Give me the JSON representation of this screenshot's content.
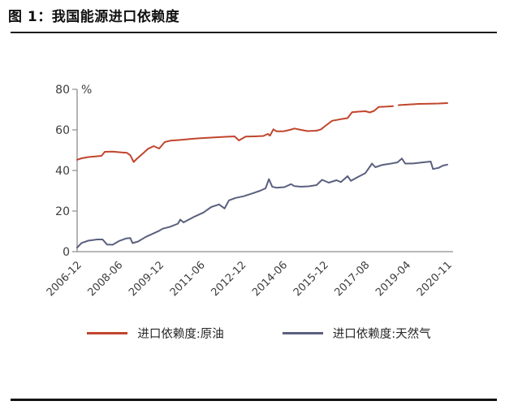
{
  "header": {
    "title": "图 1：我国能源进口依赖度"
  },
  "colors": {
    "oil_line": "#c1452c",
    "gas_line": "#5a607e",
    "axis": "#8c8c8c",
    "tick_label": "#3d3d3d",
    "title_text": "#101010",
    "rule": "#1c1c1c"
  },
  "chart_data": {
    "type": "line",
    "title": "我国能源进口依赖度",
    "unit_label": "%",
    "ylim": [
      0,
      80
    ],
    "yticks": [
      0,
      20,
      40,
      60,
      80
    ],
    "grid": "off",
    "legend_position": "bottom",
    "x_tick_labels": [
      "2006-12",
      "2008-06",
      "2009-12",
      "2011-06",
      "2012-12",
      "2014-06",
      "2015-12",
      "2017-08",
      "2019-04",
      "2020-11"
    ],
    "x_total_months": 167,
    "series": [
      {
        "name": "进口依赖度:原油",
        "color": "#c1452c",
        "segments": [
          [
            [
              0,
              45.3
            ],
            [
              2,
              46.0
            ],
            [
              5,
              46.6
            ],
            [
              9,
              47.0
            ],
            [
              11,
              47.2
            ],
            [
              12.5,
              49.2
            ],
            [
              16,
              49.3
            ],
            [
              20,
              48.9
            ],
            [
              22.5,
              48.7
            ],
            [
              24,
              47.5
            ],
            [
              25.5,
              44.2
            ],
            [
              27,
              45.8
            ],
            [
              30,
              48.7
            ],
            [
              32,
              50.7
            ],
            [
              34.5,
              52.0
            ],
            [
              37,
              50.8
            ],
            [
              39.5,
              54.0
            ],
            [
              42,
              54.7
            ],
            [
              46,
              55.0
            ],
            [
              49,
              55.3
            ],
            [
              53,
              55.7
            ],
            [
              57,
              56.0
            ],
            [
              62,
              56.3
            ],
            [
              67,
              56.6
            ],
            [
              71,
              56.8
            ],
            [
              73,
              54.8
            ],
            [
              76,
              56.7
            ],
            [
              80,
              56.8
            ],
            [
              84,
              57.0
            ],
            [
              86,
              58.0
            ],
            [
              87,
              57.2
            ],
            [
              88.5,
              60.3
            ],
            [
              90,
              59.3
            ],
            [
              93,
              59.3
            ],
            [
              96,
              60.0
            ],
            [
              98,
              60.7
            ],
            [
              101,
              60.0
            ],
            [
              104,
              59.4
            ],
            [
              108,
              59.6
            ],
            [
              110,
              60.3
            ],
            [
              112,
              62.0
            ],
            [
              115,
              64.5
            ],
            [
              119,
              65.3
            ],
            [
              122,
              65.8
            ],
            [
              124,
              68.7
            ],
            [
              127,
              69.0
            ],
            [
              130,
              69.2
            ],
            [
              132,
              68.6
            ],
            [
              134,
              69.4
            ],
            [
              136,
              71.3
            ],
            [
              140,
              71.5
            ],
            [
              142.5,
              71.7
            ]
          ],
          [
            [
              145,
              72.2
            ],
            [
              148,
              72.4
            ],
            [
              154,
              72.8
            ],
            [
              159,
              72.9
            ],
            [
              163,
              73.0
            ],
            [
              167,
              73.2
            ]
          ]
        ]
      },
      {
        "name": "进口依赖度:天然气",
        "color": "#5a607e",
        "segments": [
          [
            [
              0,
              2.0
            ],
            [
              2,
              4.3
            ],
            [
              5,
              5.4
            ],
            [
              9,
              6.0
            ],
            [
              11.5,
              6.0
            ],
            [
              13.5,
              3.5
            ],
            [
              16,
              3.4
            ],
            [
              19,
              5.3
            ],
            [
              22,
              6.5
            ],
            [
              24,
              6.7
            ],
            [
              25,
              4.2
            ],
            [
              27.5,
              5.0
            ],
            [
              31,
              7.3
            ],
            [
              35,
              9.3
            ],
            [
              37,
              10.3
            ],
            [
              38.5,
              11.3
            ],
            [
              42,
              12.3
            ],
            [
              45.5,
              13.8
            ],
            [
              46.5,
              15.8
            ],
            [
              48,
              14.4
            ],
            [
              49.5,
              15.3
            ],
            [
              53,
              17.3
            ],
            [
              57,
              19.3
            ],
            [
              60.5,
              22.0
            ],
            [
              64,
              23.3
            ],
            [
              66.5,
              21.3
            ],
            [
              68.5,
              25.3
            ],
            [
              71.5,
              26.5
            ],
            [
              75,
              27.3
            ],
            [
              79,
              28.7
            ],
            [
              82.5,
              30.0
            ],
            [
              85,
              31.2
            ],
            [
              86.5,
              35.7
            ],
            [
              88,
              32.0
            ],
            [
              90,
              31.5
            ],
            [
              93.5,
              31.8
            ],
            [
              96.5,
              33.3
            ],
            [
              98,
              32.3
            ],
            [
              101,
              32.0
            ],
            [
              104.5,
              32.2
            ],
            [
              108,
              32.8
            ],
            [
              110.5,
              35.4
            ],
            [
              113.5,
              34.0
            ],
            [
              117,
              35.2
            ],
            [
              119,
              34.3
            ],
            [
              122,
              37.2
            ],
            [
              123.5,
              34.9
            ],
            [
              126.5,
              36.7
            ],
            [
              130,
              38.7
            ],
            [
              133,
              43.4
            ],
            [
              134.5,
              41.6
            ],
            [
              137.5,
              42.7
            ],
            [
              141,
              43.3
            ],
            [
              144.5,
              44.0
            ],
            [
              146.5,
              45.9
            ],
            [
              148,
              43.4
            ],
            [
              152,
              43.5
            ],
            [
              156,
              44.0
            ],
            [
              159.5,
              44.4
            ],
            [
              160.5,
              40.7
            ],
            [
              163,
              41.3
            ],
            [
              165,
              42.4
            ],
            [
              167,
              42.9
            ]
          ]
        ]
      }
    ]
  }
}
